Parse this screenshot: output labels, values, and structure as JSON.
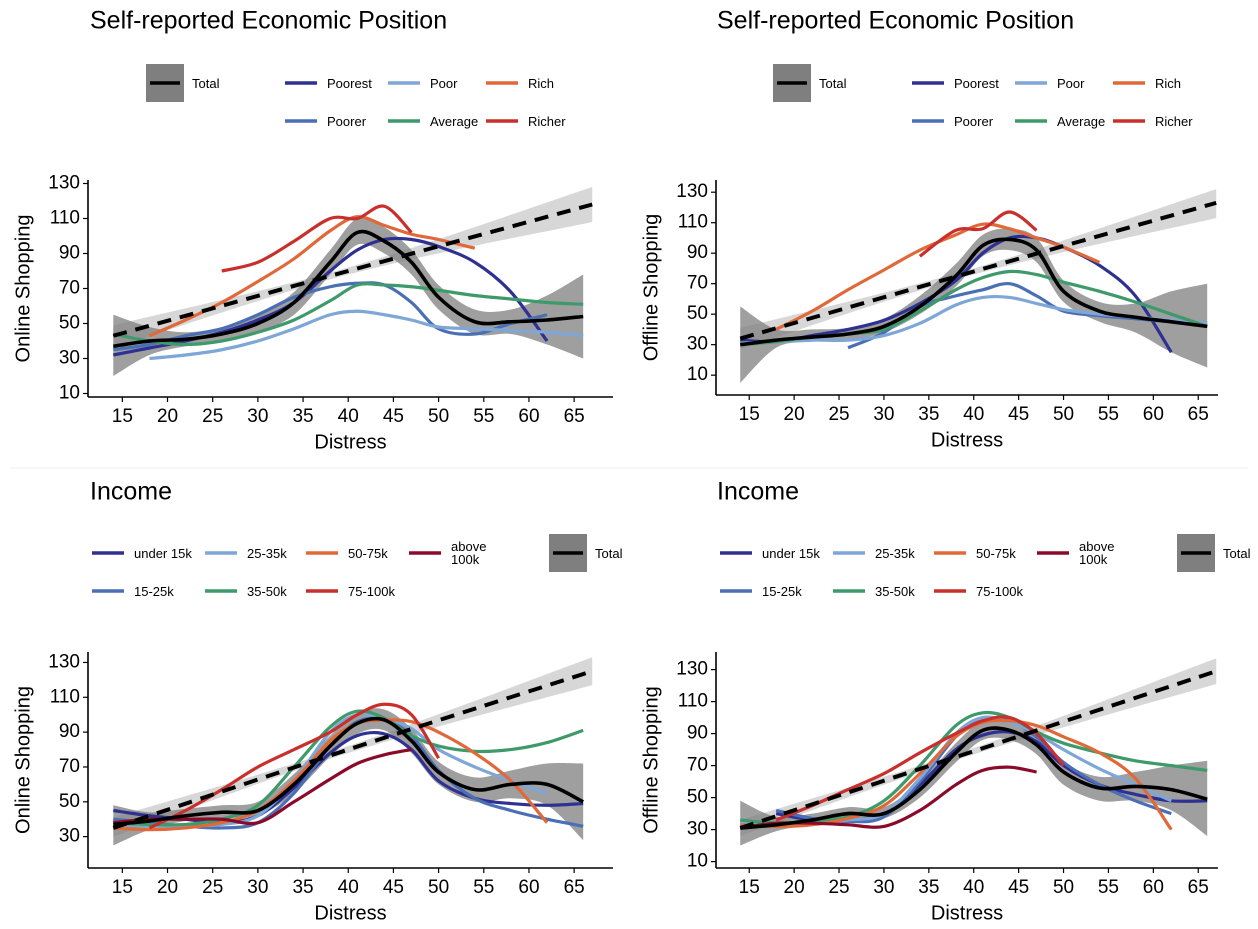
{
  "chart_data": [
    {
      "type": "line",
      "title": "Self-reported Economic Position",
      "xlabel": "Distress",
      "ylabel": "Online Shopping",
      "xlim": [
        11.2,
        69.3
      ],
      "ylim": [
        8,
        132
      ],
      "xticks": [
        15,
        20,
        25,
        30,
        35,
        40,
        45,
        50,
        55,
        60,
        65
      ],
      "yticks": [
        10,
        30,
        50,
        70,
        90,
        110,
        130
      ],
      "x": [
        14,
        18,
        22,
        26,
        30,
        34,
        38,
        41,
        44,
        47,
        50,
        54,
        58,
        62,
        66
      ],
      "series": [
        {
          "name": "Total",
          "color": "#000000",
          "band_color": "#7f7f7f",
          "values": [
            37,
            40,
            41,
            44,
            50,
            62,
            85,
            102,
            97,
            85,
            65,
            51,
            51,
            52,
            54
          ],
          "lower": [
            20,
            32,
            37,
            40,
            45,
            55,
            78,
            95,
            90,
            78,
            58,
            44,
            44,
            38,
            30
          ],
          "upper": [
            55,
            48,
            45,
            48,
            55,
            68,
            92,
            110,
            105,
            92,
            72,
            58,
            58,
            66,
            78
          ]
        },
        {
          "name": "Poorest",
          "color": "#2e3192",
          "values": [
            32,
            36,
            40,
            45,
            52,
            62,
            80,
            92,
            98,
            98,
            94,
            85,
            68,
            40,
            null
          ]
        },
        {
          "name": "Poorer",
          "color": "#4a6fb5",
          "values": [
            35,
            38,
            43,
            47,
            55,
            65,
            71,
            73,
            72,
            62,
            47,
            44,
            50,
            55,
            null
          ]
        },
        {
          "name": "Poor",
          "color": "#7ea6d6",
          "values": [
            null,
            30,
            32,
            35,
            40,
            47,
            55,
            57,
            55,
            52,
            48,
            47,
            46,
            45,
            43
          ]
        },
        {
          "name": "Average",
          "color": "#3f9a6b",
          "values": [
            44,
            40,
            38,
            40,
            45,
            52,
            63,
            72,
            72,
            71,
            69,
            66,
            64,
            62,
            61
          ]
        },
        {
          "name": "Rich",
          "color": "#e0693a",
          "values": [
            null,
            43,
            52,
            62,
            74,
            87,
            103,
            111,
            106,
            101,
            98,
            93,
            null,
            null,
            null
          ]
        },
        {
          "name": "Richer",
          "color": "#c9302c",
          "values": [
            null,
            null,
            null,
            80,
            85,
            97,
            110,
            110,
            117,
            102,
            null,
            null,
            null,
            null,
            null
          ]
        }
      ],
      "fit": {
        "color": "#000000",
        "band_color": "#d3d3d3",
        "x": [
          14,
          40,
          67
        ],
        "values": [
          43,
          80,
          118
        ],
        "lower": [
          36,
          78,
          108
        ],
        "upper": [
          49,
          82,
          128
        ]
      }
    },
    {
      "type": "line",
      "title": "Self-reported Economic Position",
      "xlabel": "Distress",
      "ylabel": "Offline Shopping",
      "xlim": [
        11.3,
        67.2
      ],
      "ylim": [
        -3,
        138
      ],
      "xticks": [
        15,
        20,
        25,
        30,
        35,
        40,
        45,
        50,
        55,
        60,
        65
      ],
      "yticks": [
        10,
        30,
        50,
        70,
        90,
        110,
        130
      ],
      "x": [
        14,
        18,
        22,
        26,
        30,
        34,
        38,
        41,
        44,
        47,
        50,
        54,
        58,
        62,
        66
      ],
      "series": [
        {
          "name": "Total",
          "color": "#000000",
          "band_color": "#7f7f7f",
          "values": [
            30,
            33,
            35,
            37,
            42,
            55,
            75,
            95,
            99,
            92,
            65,
            52,
            48,
            45,
            42
          ],
          "lower": [
            5,
            28,
            32,
            33,
            38,
            50,
            68,
            88,
            92,
            84,
            58,
            45,
            38,
            25,
            15
          ],
          "upper": [
            55,
            40,
            40,
            41,
            47,
            62,
            83,
            102,
            106,
            100,
            72,
            58,
            57,
            65,
            70
          ]
        },
        {
          "name": "Poorest",
          "color": "#2e3192",
          "values": [
            33,
            32,
            36,
            40,
            46,
            57,
            72,
            90,
            100,
            100,
            94,
            82,
            62,
            25,
            null
          ]
        },
        {
          "name": "Poorer",
          "color": "#4a6fb5",
          "values": [
            null,
            null,
            null,
            28,
            38,
            55,
            62,
            66,
            70,
            62,
            52,
            49,
            47,
            45,
            null
          ]
        },
        {
          "name": "Poor",
          "color": "#7ea6d6",
          "values": [
            31,
            32,
            33,
            33,
            36,
            44,
            56,
            61,
            61,
            57,
            53,
            50,
            48,
            46,
            44
          ]
        },
        {
          "name": "Average",
          "color": "#3f9a6b",
          "values": [
            30,
            32,
            35,
            37,
            40,
            52,
            66,
            74,
            78,
            76,
            71,
            65,
            58,
            50,
            42
          ]
        },
        {
          "name": "Rich",
          "color": "#e0693a",
          "values": [
            null,
            40,
            52,
            66,
            79,
            92,
            102,
            109,
            106,
            100,
            94,
            84,
            null,
            null,
            null
          ]
        },
        {
          "name": "Richer",
          "color": "#c9302c",
          "values": [
            null,
            null,
            null,
            null,
            null,
            88,
            105,
            106,
            117,
            105,
            null,
            null,
            null,
            null,
            null
          ]
        }
      ],
      "fit": {
        "color": "#000000",
        "band_color": "#d3d3d3",
        "x": [
          14,
          40,
          67
        ],
        "values": [
          34,
          78,
          123
        ],
        "lower": [
          27,
          76,
          113
        ],
        "upper": [
          41,
          80,
          132
        ]
      }
    },
    {
      "type": "line",
      "title": "Income",
      "xlabel": "Distress",
      "ylabel": "Online Shopping",
      "xlim": [
        11.2,
        69.3
      ],
      "ylim": [
        12,
        136
      ],
      "xticks": [
        15,
        20,
        25,
        30,
        35,
        40,
        45,
        50,
        55,
        60,
        65
      ],
      "yticks": [
        30,
        50,
        70,
        90,
        110,
        130
      ],
      "x": [
        14,
        18,
        22,
        26,
        30,
        34,
        38,
        41,
        44,
        47,
        50,
        54,
        58,
        62,
        66
      ],
      "series": [
        {
          "name": "Total",
          "color": "#000000",
          "band_color": "#7f7f7f",
          "values": [
            37,
            39,
            42,
            44,
            45,
            60,
            82,
            95,
            97,
            85,
            67,
            57,
            60,
            60,
            50
          ],
          "lower": [
            25,
            34,
            39,
            41,
            42,
            55,
            76,
            89,
            91,
            78,
            60,
            50,
            52,
            48,
            28
          ],
          "upper": [
            48,
            44,
            46,
            48,
            50,
            66,
            88,
            101,
            103,
            92,
            73,
            64,
            68,
            72,
            72
          ]
        },
        {
          "name": "under 15k",
          "color": "#2e3192",
          "values": [
            45,
            42,
            40,
            38,
            42,
            58,
            78,
            88,
            89,
            80,
            62,
            52,
            49,
            48,
            49
          ]
        },
        {
          "name": "15-25k",
          "color": "#4a6fb5",
          "values": [
            40,
            38,
            36,
            35,
            38,
            55,
            82,
            96,
            97,
            88,
            68,
            52,
            45,
            40,
            36
          ]
        },
        {
          "name": "25-35k",
          "color": "#7ea6d6",
          "values": [
            37,
            36,
            36,
            37,
            42,
            62,
            90,
            100,
            98,
            92,
            80,
            70,
            62,
            55,
            null
          ]
        },
        {
          "name": "35-50k",
          "color": "#3f9a6b",
          "values": [
            38,
            37,
            37,
            40,
            48,
            70,
            93,
            102,
            98,
            88,
            82,
            79,
            80,
            84,
            91
          ]
        },
        {
          "name": "50-75k",
          "color": "#e0693a",
          "values": [
            35,
            34,
            35,
            38,
            45,
            62,
            85,
            95,
            97,
            96,
            90,
            78,
            62,
            38,
            null
          ]
        },
        {
          "name": "75-100k",
          "color": "#c9302c",
          "values": [
            null,
            35,
            45,
            57,
            70,
            80,
            90,
            100,
            106,
            100,
            75,
            null,
            null,
            null,
            null
          ]
        },
        {
          "name": "above 100k",
          "color": "#8b0a2a",
          "values": [
            38,
            40,
            40,
            40,
            38,
            50,
            63,
            72,
            77,
            80,
            null,
            null,
            null,
            null,
            null
          ]
        }
      ],
      "fit": {
        "color": "#000000",
        "band_color": "#d3d3d3",
        "x": [
          14,
          40,
          67
        ],
        "values": [
          35,
          80,
          125
        ],
        "lower": [
          30,
          78,
          117
        ],
        "upper": [
          41,
          82,
          133
        ]
      }
    },
    {
      "type": "line",
      "title": "Income",
      "xlabel": "Distress",
      "ylabel": "Offline Shopping",
      "xlim": [
        11.3,
        67.2
      ],
      "ylim": [
        6,
        141
      ],
      "xticks": [
        15,
        20,
        25,
        30,
        35,
        40,
        45,
        50,
        55,
        60,
        65
      ],
      "yticks": [
        10,
        30,
        50,
        70,
        90,
        110,
        130
      ],
      "x": [
        14,
        18,
        22,
        26,
        30,
        34,
        38,
        41,
        44,
        47,
        50,
        54,
        58,
        62,
        66
      ],
      "series": [
        {
          "name": "Total",
          "color": "#000000",
          "band_color": "#7f7f7f",
          "values": [
            31,
            33,
            36,
            40,
            40,
            55,
            78,
            92,
            92,
            83,
            66,
            56,
            57,
            55,
            49
          ],
          "lower": [
            20,
            29,
            33,
            37,
            37,
            50,
            72,
            86,
            86,
            77,
            58,
            48,
            48,
            42,
            26
          ],
          "upper": [
            48,
            38,
            40,
            44,
            44,
            60,
            84,
            98,
            98,
            90,
            72,
            63,
            66,
            70,
            73
          ]
        },
        {
          "name": "under 15k",
          "color": "#2e3192",
          "values": [
            null,
            40,
            36,
            36,
            40,
            58,
            80,
            89,
            91,
            85,
            70,
            58,
            52,
            48,
            48
          ]
        },
        {
          "name": "15-25k",
          "color": "#4a6fb5",
          "values": [
            null,
            42,
            37,
            35,
            38,
            60,
            88,
            99,
            98,
            88,
            72,
            58,
            48,
            40,
            null
          ]
        },
        {
          "name": "25-35k",
          "color": "#7ea6d6",
          "values": [
            35,
            34,
            34,
            36,
            40,
            62,
            90,
            100,
            97,
            90,
            80,
            68,
            58,
            48,
            null
          ]
        },
        {
          "name": "35-50k",
          "color": "#3f9a6b",
          "values": [
            36,
            34,
            35,
            38,
            48,
            70,
            95,
            103,
            100,
            91,
            84,
            78,
            73,
            70,
            67
          ]
        },
        {
          "name": "50-75k",
          "color": "#e0693a",
          "values": [
            33,
            32,
            33,
            37,
            45,
            65,
            88,
            97,
            98,
            95,
            88,
            78,
            62,
            30,
            null
          ]
        },
        {
          "name": "75-100k",
          "color": "#c9302c",
          "values": [
            null,
            36,
            45,
            55,
            65,
            78,
            90,
            98,
            100,
            90,
            70,
            null,
            null,
            null,
            null
          ]
        },
        {
          "name": "above 100k",
          "color": "#8b0a2a",
          "values": [
            31,
            34,
            34,
            33,
            32,
            42,
            58,
            67,
            69,
            66,
            null,
            null,
            null,
            null,
            null
          ]
        }
      ],
      "fit": {
        "color": "#000000",
        "band_color": "#d3d3d3",
        "x": [
          14,
          40,
          67
        ],
        "values": [
          31,
          79,
          129
        ],
        "lower": [
          26,
          77,
          121
        ],
        "upper": [
          36,
          81,
          137
        ]
      }
    }
  ]
}
